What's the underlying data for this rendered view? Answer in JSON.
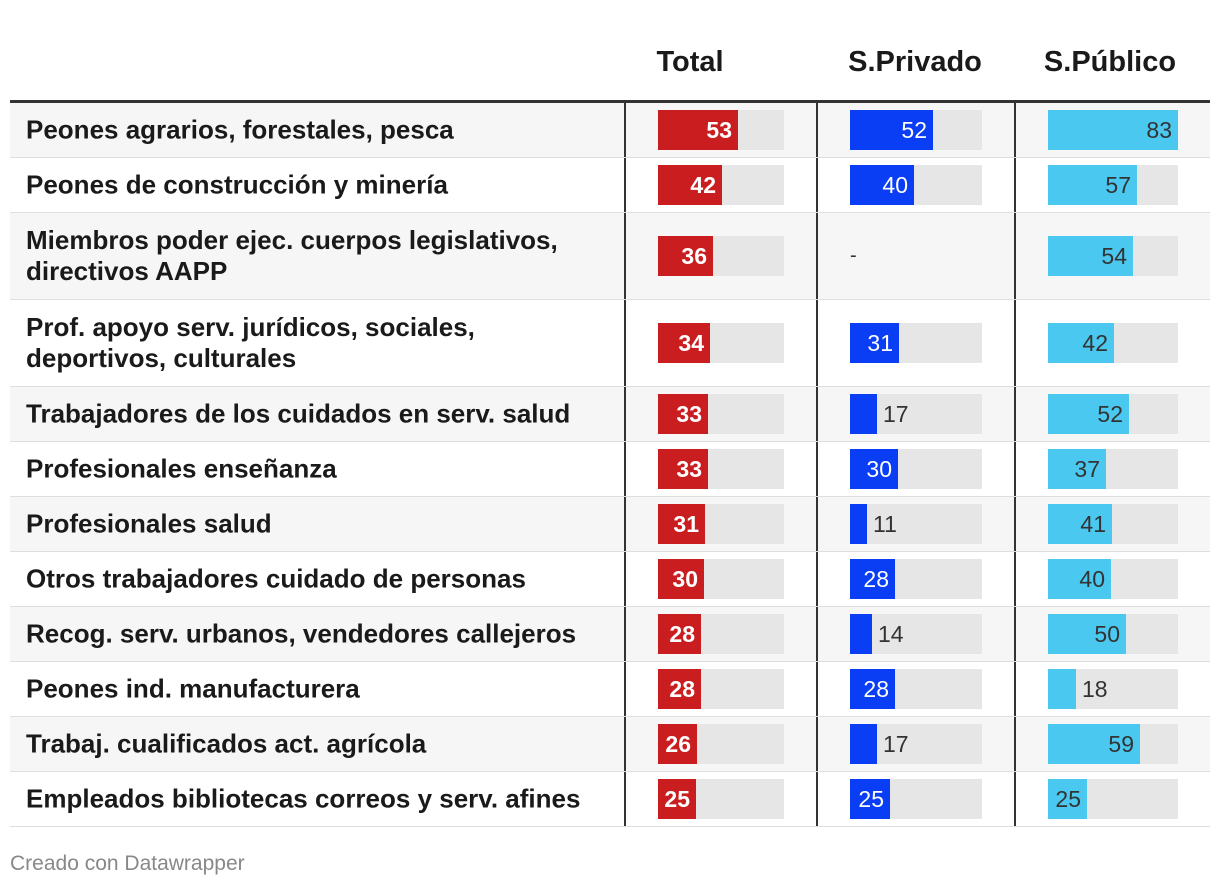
{
  "chart_data": {
    "type": "table",
    "columns": [
      {
        "key": "total",
        "label": "Total",
        "color": "#c91d1f"
      },
      {
        "key": "privado",
        "label": "S.Privado",
        "color": "#0a3ef5"
      },
      {
        "key": "publico",
        "label": "S.Público",
        "color": "#4ac8f0"
      }
    ],
    "value_range": [
      0,
      83
    ],
    "rows": [
      {
        "label": "Peones agrarios, forestales, pesca",
        "total": 53,
        "privado": 52,
        "publico": 83
      },
      {
        "label": "Peones de construcción y minería",
        "total": 42,
        "privado": 40,
        "publico": 57
      },
      {
        "label": "Miembros poder ejec. cuerpos legislativos, directivos AAPP",
        "total": 36,
        "privado": null,
        "publico": 54
      },
      {
        "label": "Prof. apoyo serv. jurídicos, sociales, deportivos, culturales",
        "total": 34,
        "privado": 31,
        "publico": 42
      },
      {
        "label": "Trabajadores de los cuidados en serv. salud",
        "total": 33,
        "privado": 17,
        "publico": 52
      },
      {
        "label": "Profesionales enseñanza",
        "total": 33,
        "privado": 30,
        "publico": 37
      },
      {
        "label": "Profesionales salud",
        "total": 31,
        "privado": 11,
        "publico": 41
      },
      {
        "label": "Otros trabajadores cuidado de personas",
        "total": 30,
        "privado": 28,
        "publico": 40
      },
      {
        "label": "Recog. serv. urbanos, vendedores callejeros",
        "total": 28,
        "privado": 14,
        "publico": 50
      },
      {
        "label": "Peones ind. manufacturera",
        "total": 28,
        "privado": 28,
        "publico": 18
      },
      {
        "label": "Trabaj. cualificados act. agrícola",
        "total": 26,
        "privado": 17,
        "publico": 59
      },
      {
        "label": "Empleados bibliotecas correos y serv. afines",
        "total": 25,
        "privado": 25,
        "publico": 25
      }
    ],
    "missing_symbol": "-"
  },
  "footer": {
    "credit": "Creado con Datawrapper"
  }
}
